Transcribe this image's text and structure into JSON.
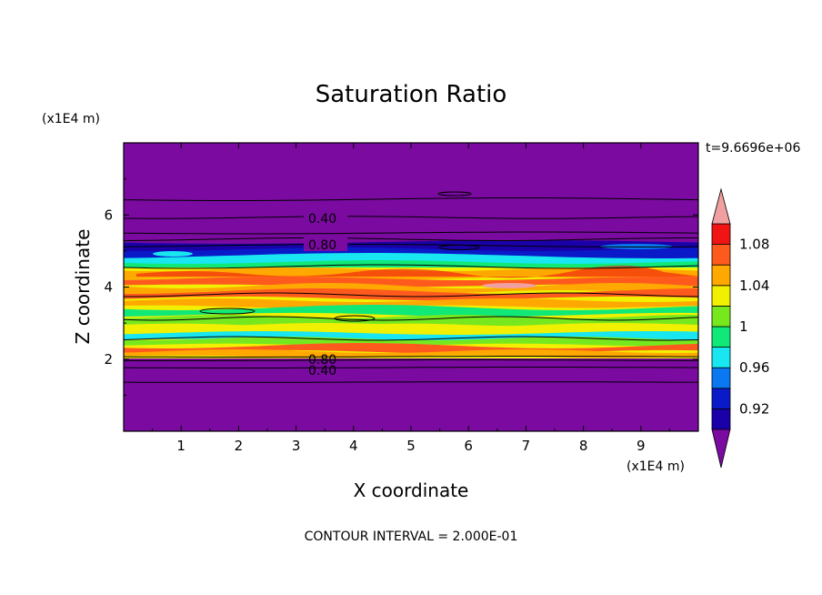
{
  "chart_data": {
    "type": "heatmap",
    "title": "Saturation Ratio",
    "xlabel": "X coordinate",
    "ylabel": "Z coordinate",
    "x_unit": "(x1E4 m)",
    "y_unit": "(x1E4 m)",
    "time_label": "t=9.6696e+06",
    "footer": "CONTOUR INTERVAL = 2.000E-01",
    "xlim": [
      0,
      10
    ],
    "ylim": [
      0,
      8
    ],
    "x_ticks": [
      "1",
      "2",
      "3",
      "4",
      "5",
      "6",
      "7",
      "8",
      "9"
    ],
    "y_ticks": [
      "2",
      "4",
      "6"
    ],
    "colorbar": {
      "labels": [
        "0.92",
        "0.96",
        "1",
        "1.04",
        "1.08"
      ],
      "levels": [
        0.9,
        0.92,
        0.94,
        0.96,
        0.98,
        1.0,
        1.02,
        1.04,
        1.06,
        1.08,
        1.1
      ],
      "colors": [
        "#7a0aa0",
        "#1a00a8",
        "#0a1ac8",
        "#0a78f0",
        "#18e6f0",
        "#10e878",
        "#78e81e",
        "#f0f000",
        "#ffa800",
        "#ff5a1e",
        "#f01414",
        "#f0a0a0"
      ]
    },
    "contour_labels": [
      "0.40",
      "0.80",
      "0.80",
      "0.40"
    ]
  }
}
